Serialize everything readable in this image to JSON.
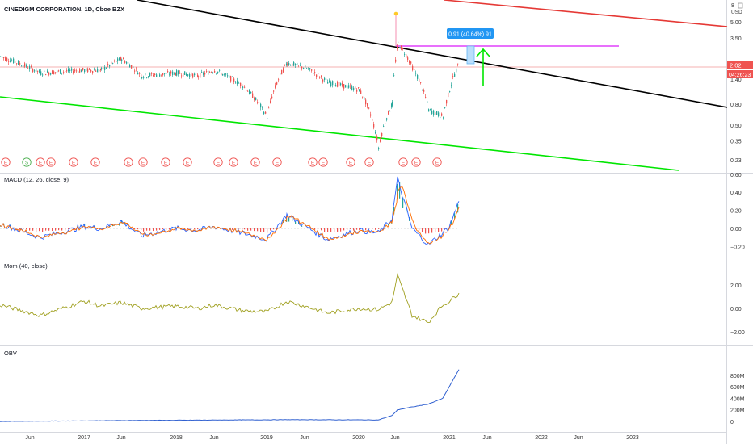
{
  "header": {
    "title": "CINEDIGM CORPORATION, 1D, Cboe BZX",
    "top_axis_number": "8",
    "currency": "USD"
  },
  "price_panel": {
    "y_ticks": [
      {
        "label": "5.00",
        "value": 5.0
      },
      {
        "label": "3.50",
        "value": 3.5
      },
      {
        "label": "1.40",
        "value": 1.4
      },
      {
        "label": "0.80",
        "value": 0.8
      },
      {
        "label": "0.50",
        "value": 0.5
      },
      {
        "label": "0.35",
        "value": 0.35
      },
      {
        "label": "0.23",
        "value": 0.23
      }
    ],
    "last_price": {
      "label": "2.02",
      "value": 2.02
    },
    "countdown": "04:26:23",
    "measure_label": "0.91 (40.64%) 91",
    "event_markers": [
      "E",
      "S",
      "E",
      "E",
      "E",
      "E",
      "E",
      "E",
      "E",
      "E",
      "E",
      "E",
      "E",
      "E",
      "E",
      "E",
      "E",
      "E",
      "E",
      "E",
      "E"
    ]
  },
  "macd_panel": {
    "title": "MACD (12, 26, close, 9)",
    "y_ticks": [
      {
        "label": "0.60",
        "value": 0.6
      },
      {
        "label": "0.40",
        "value": 0.4
      },
      {
        "label": "0.20",
        "value": 0.2
      },
      {
        "label": "0.00",
        "value": 0.0
      },
      {
        "label": "−0.20",
        "value": -0.2
      }
    ]
  },
  "mom_panel": {
    "title": "Mom (40, close)",
    "y_ticks": [
      {
        "label": "2.00",
        "value": 2.0
      },
      {
        "label": "0.00",
        "value": 0.0
      },
      {
        "label": "−2.00",
        "value": -2.0
      }
    ]
  },
  "obv_panel": {
    "title": "OBV",
    "y_ticks": [
      {
        "label": "800M",
        "value": 800
      },
      {
        "label": "600M",
        "value": 600
      },
      {
        "label": "400M",
        "value": 400
      },
      {
        "label": "200M",
        "value": 200
      },
      {
        "label": "0",
        "value": 0
      }
    ]
  },
  "x_axis": {
    "labels": [
      "Jun",
      "2017",
      "Jun",
      "2018",
      "Jun",
      "2019",
      "Jun",
      "2020",
      "Jun",
      "2021",
      "Jun",
      "2022",
      "Jun",
      "2023"
    ]
  },
  "colors": {
    "up": "#26a69a",
    "down": "#ef5350",
    "black_trend": "#000000",
    "red_trend": "#e53935",
    "green_trend": "#00e600",
    "magenta": "#e040fb",
    "arrow": "#00e600",
    "macd": "#2962ff",
    "signal": "#ff6d00",
    "mom": "#a0a020",
    "obv": "#3060d0",
    "axis_text": "#333333"
  },
  "chart_data": {
    "type": "line",
    "title": "CINEDIGM CORPORATION, 1D, Cboe BZX",
    "x": [
      "2016-06",
      "2016-10",
      "2017-01",
      "2017-04",
      "2017-06",
      "2017-09",
      "2018-01",
      "2018-04",
      "2018-06",
      "2018-10",
      "2019-01",
      "2019-03",
      "2019-06",
      "2019-09",
      "2020-01",
      "2020-03",
      "2020-05",
      "2020-06",
      "2020-08",
      "2020-10",
      "2020-12",
      "2021-01",
      "2021-02"
    ],
    "series": [
      {
        "name": "CINEDIGM CORPORATION",
        "values": [
          2.3,
          1.6,
          1.7,
          1.7,
          2.2,
          1.5,
          1.6,
          1.5,
          1.7,
          1.2,
          0.6,
          2.0,
          1.8,
          1.3,
          1.1,
          0.3,
          0.8,
          3.1,
          1.8,
          0.7,
          0.6,
          1.1,
          2.02
        ]
      },
      {
        "name": "MACD (12, 26, close, 9)",
        "values": [
          0.05,
          -0.1,
          0.02,
          0.0,
          0.08,
          -0.08,
          0.0,
          -0.02,
          0.02,
          -0.05,
          -0.12,
          0.15,
          0.03,
          -0.12,
          -0.02,
          -0.05,
          0.1,
          0.55,
          0.0,
          -0.18,
          -0.05,
          0.02,
          0.3
        ]
      },
      {
        "name": "Mom (40, close)",
        "values": [
          0.3,
          -0.6,
          0.6,
          0.2,
          0.5,
          0.0,
          0.2,
          0.0,
          0.3,
          -0.2,
          -0.3,
          0.6,
          0.2,
          -0.4,
          0.0,
          -0.1,
          0.5,
          2.8,
          -0.6,
          -1.2,
          0.3,
          0.6,
          1.3
        ]
      },
      {
        "name": "OBV",
        "values": [
          0,
          5,
          10,
          12,
          15,
          18,
          20,
          22,
          24,
          26,
          28,
          30,
          30,
          28,
          27,
          25,
          100,
          200,
          250,
          300,
          400,
          600,
          900
        ]
      }
    ],
    "xlabel": "",
    "ylabel": ""
  }
}
